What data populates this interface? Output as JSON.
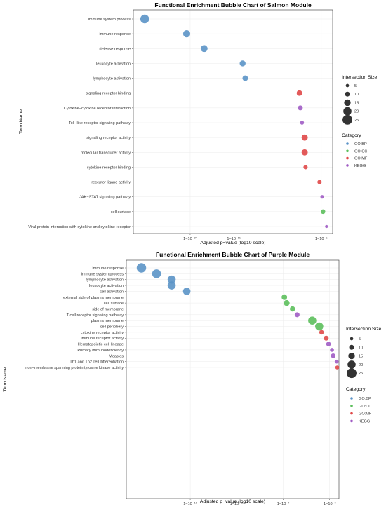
{
  "colors": {
    "GO:BP": "#5b93c7",
    "GO:CC": "#5cbf5c",
    "GO:MF": "#e04848",
    "KEGG": "#a05cc4"
  },
  "chart_data": [
    {
      "type": "scatter",
      "title": "Functional Enrichment Bubble Chart of Salmon Module",
      "xlabel": "Adjusted p−value (log10 scale)",
      "ylabel": "Term Name",
      "x_scale": "log10",
      "xlim_log10": [
        -26.5,
        -3.7
      ],
      "xticks": [
        {
          "value": -20,
          "label": "1−10⁻²⁰"
        },
        {
          "value": -15,
          "label": "1−10⁻¹⁵"
        },
        {
          "value": -5,
          "label": "1−10⁻⁵"
        }
      ],
      "legend_size_title": "Intersection Size",
      "legend_category_title": "Category",
      "legend_sizes": [
        5,
        10,
        15,
        20,
        25
      ],
      "legend_categories": [
        "GO:BP",
        "GO:CC",
        "GO:MF",
        "KEGG"
      ],
      "points": [
        {
          "term": "immune system process",
          "log10p": -25.2,
          "size": 22,
          "category": "GO:BP"
        },
        {
          "term": "immune response",
          "log10p": -20.4,
          "size": 17,
          "category": "GO:BP"
        },
        {
          "term": "defense response",
          "log10p": -18.4,
          "size": 16,
          "category": "GO:BP"
        },
        {
          "term": "leukocyte activation",
          "log10p": -14.0,
          "size": 13,
          "category": "GO:BP"
        },
        {
          "term": "lymphocyte activation",
          "log10p": -13.7,
          "size": 12,
          "category": "GO:BP"
        },
        {
          "term": "signaling receptor binding",
          "log10p": -7.5,
          "size": 12,
          "category": "GO:MF"
        },
        {
          "term": "Cytokine−cytokine receptor interaction",
          "log10p": -7.4,
          "size": 10,
          "category": "KEGG"
        },
        {
          "term": "Toll−like receptor signaling pathway",
          "log10p": -7.2,
          "size": 7,
          "category": "KEGG"
        },
        {
          "term": "signaling receptor activity",
          "log10p": -6.9,
          "size": 14,
          "category": "GO:MF"
        },
        {
          "term": "molecular transducer activity",
          "log10p": -6.9,
          "size": 14,
          "category": "GO:MF"
        },
        {
          "term": "cytokine receptor binding",
          "log10p": -6.8,
          "size": 8,
          "category": "GO:MF"
        },
        {
          "term": "receptor ligand activity",
          "log10p": -5.2,
          "size": 8,
          "category": "GO:MF"
        },
        {
          "term": "JAK−STAT signaling pathway",
          "log10p": -4.9,
          "size": 6,
          "category": "KEGG"
        },
        {
          "term": "cell surface",
          "log10p": -4.8,
          "size": 9,
          "category": "GO:CC"
        },
        {
          "term": "Viral protein interaction with cytokine and cytokine receptor",
          "log10p": -4.4,
          "size": 4,
          "category": "KEGG"
        }
      ]
    },
    {
      "type": "scatter",
      "title": "Functional Enrichment Bubble Chart of Purple Module",
      "xlabel": "Adjusted p−value (log10 scale)",
      "ylabel": "Term Name",
      "x_scale": "log10",
      "xlim_log10": [
        -20.5,
        -2.2
      ],
      "xticks": [
        {
          "value": -15,
          "label": "1−10⁻¹⁵"
        },
        {
          "value": -11,
          "label": "1−10⁻¹¹"
        },
        {
          "value": -7,
          "label": "1−10⁻⁷"
        },
        {
          "value": -3,
          "label": "1−10⁻³"
        }
      ],
      "legend_size_title": "Intersection Size",
      "legend_category_title": "Category",
      "legend_sizes": [
        5,
        10,
        15,
        20,
        25
      ],
      "legend_categories": [
        "GO:BP",
        "GO:CC",
        "GO:MF",
        "KEGG"
      ],
      "points": [
        {
          "term": "immune response",
          "log10p": -19.2,
          "size": 24,
          "category": "GO:BP"
        },
        {
          "term": "immune system process",
          "log10p": -17.9,
          "size": 22,
          "category": "GO:BP"
        },
        {
          "term": "lymphocyte activation",
          "log10p": -16.6,
          "size": 20,
          "category": "GO:BP"
        },
        {
          "term": "leukocyte activation",
          "log10p": -16.6,
          "size": 20,
          "category": "GO:BP"
        },
        {
          "term": "cell activation",
          "log10p": -15.3,
          "size": 18,
          "category": "GO:BP"
        },
        {
          "term": "external side of plasma membrane",
          "log10p": -6.9,
          "size": 12,
          "category": "GO:CC"
        },
        {
          "term": "cell surface",
          "log10p": -6.7,
          "size": 13,
          "category": "GO:CC"
        },
        {
          "term": "side of membrane",
          "log10p": -6.2,
          "size": 11,
          "category": "GO:CC"
        },
        {
          "term": "T cell receptor signaling pathway",
          "log10p": -5.8,
          "size": 10,
          "category": "KEGG"
        },
        {
          "term": "plasma membrane",
          "log10p": -4.5,
          "size": 20,
          "category": "GO:CC"
        },
        {
          "term": "cell periphery",
          "log10p": -3.9,
          "size": 20,
          "category": "GO:CC"
        },
        {
          "term": "cytokine receptor activity",
          "log10p": -3.7,
          "size": 9,
          "category": "GO:MF"
        },
        {
          "term": "immune receptor activity",
          "log10p": -3.3,
          "size": 10,
          "category": "GO:MF"
        },
        {
          "term": "Hematopoietic cell lineage",
          "log10p": -3.1,
          "size": 9,
          "category": "KEGG"
        },
        {
          "term": "Primary immunodeficiency",
          "log10p": -2.8,
          "size": 7,
          "category": "KEGG"
        },
        {
          "term": "Measles",
          "log10p": -2.7,
          "size": 9,
          "category": "KEGG"
        },
        {
          "term": "Th1 and Th2 cell differentiation",
          "log10p": -2.4,
          "size": 7,
          "category": "KEGG"
        },
        {
          "term": "non−membrane spanning protein tyrosine kinase activity",
          "log10p": -2.35,
          "size": 7,
          "category": "GO:MF"
        }
      ]
    }
  ]
}
